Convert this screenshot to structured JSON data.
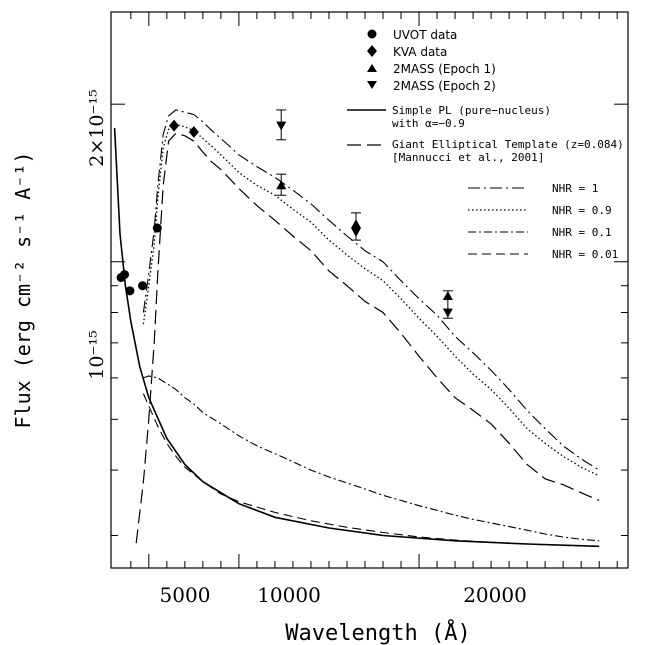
{
  "chart_data": {
    "type": "line",
    "title": "",
    "xlabel": "Wavelength (Å)",
    "ylabel": "Flux (erg cm⁻² s⁻¹ A⁻¹)",
    "x_ticks": [
      "5000",
      "10000",
      "20000"
    ],
    "y_ticks": [
      "10⁻¹⁵",
      "2×10⁻¹⁵"
    ],
    "xlim": [
      2900,
      31600
    ],
    "ylim": [
      2.6e-16,
      3e-15
    ],
    "y_scale": "log",
    "legend": [
      {
        "label": "UVOT data"
      },
      {
        "label": "KVA data"
      },
      {
        "label": "2MASS (Epoch 1)"
      },
      {
        "label": "2MASS (Epoch 2)"
      },
      {
        "label": "Simple PL (pure−nucleus)",
        "label2": "with α=−0.9"
      },
      {
        "label": "Giant Elliptical Template (z=0.084)",
        "label2": "[Mannucci et al., 2001]"
      },
      {
        "label": "NHR = 1"
      },
      {
        "label": "NHR = 0.9"
      },
      {
        "label": "NHR = 0.1"
      },
      {
        "label": "NHR = 0.01"
      }
    ],
    "points": {
      "uvot": [
        [
          3460,
          9.33e-16
        ],
        [
          3650,
          9.45e-16
        ],
        [
          3950,
          8.8e-16
        ],
        [
          4650,
          9e-16
        ],
        [
          5470,
          1.16e-15
        ]
      ],
      "kva": [
        [
          6400,
          1.82e-15
        ],
        [
          7500,
          1.77e-15
        ]
      ],
      "twomass_epoch1": [
        [
          12350,
          1.4e-15
        ],
        [
          16500,
          1.18e-15
        ],
        [
          21600,
          8.6e-16
        ]
      ],
      "twomass_epoch2": [
        [
          12350,
          1.82e-15
        ],
        [
          16500,
          1.14e-15
        ],
        [
          21600,
          8e-16
        ]
      ]
    },
    "error_bars": [
      {
        "x": 12350,
        "lo": 1.71e-15,
        "hi": 1.95e-15
      },
      {
        "x": 12350,
        "lo": 1.34e-15,
        "hi": 1.47e-15
      },
      {
        "x": 16500,
        "lo": 1.1e-15,
        "hi": 1.24e-15
      },
      {
        "x": 21600,
        "lo": 7.8e-16,
        "hi": 8.8e-16
      }
    ],
    "series": [
      {
        "key": "pl",
        "x": [
          3100,
          3400,
          3700,
          4000,
          4500,
          5000,
          6000,
          7000,
          8000,
          10000,
          12000,
          15000,
          18000,
          22000,
          26000,
          30000
        ],
        "y": [
          1.8e-15,
          1.13e-15,
          9e-16,
          7.7e-16,
          6.3e-16,
          5.5e-16,
          4.6e-16,
          4.1e-16,
          3.8e-16,
          3.45e-16,
          3.25e-16,
          3.1e-16,
          3e-16,
          2.93e-16,
          2.89e-16,
          2.86e-16
        ]
      },
      {
        "key": "template",
        "x": [
          4300,
          4700,
          5000,
          5300,
          5500,
          5800,
          6100,
          6500,
          7000,
          7500,
          8000,
          8500,
          9000,
          9500,
          10000,
          11000,
          12000,
          13000,
          14000,
          15000,
          16000,
          17000,
          18000,
          19000,
          20000,
          21000,
          22000,
          23000,
          24000,
          25000,
          26000,
          27000,
          28000,
          29000,
          30000
        ],
        "y": [
          2.9e-16,
          3.8e-16,
          5e-16,
          7e-16,
          9.5e-16,
          1.4e-15,
          1.7e-15,
          1.76e-15,
          1.74e-15,
          1.7e-15,
          1.62e-15,
          1.55e-15,
          1.5e-15,
          1.44e-15,
          1.38e-15,
          1.28e-15,
          1.2e-15,
          1.12e-15,
          1.05e-15,
          9.6e-16,
          9e-16,
          8.4e-16,
          8e-16,
          7.3e-16,
          6.6e-16,
          6e-16,
          5.5e-16,
          5.2e-16,
          4.9e-16,
          4.5e-16,
          4.1e-16,
          3.85e-16,
          3.75e-16,
          3.62e-16,
          3.5e-16
        ]
      },
      {
        "key": "nhr1",
        "x": [
          4700,
          5000,
          5300,
          5500,
          5800,
          6100,
          6500,
          7000,
          7500,
          8000,
          8500,
          9000,
          9500,
          10000,
          11000,
          12000,
          13000,
          14000,
          15000,
          16000,
          17000,
          18000,
          19000,
          20000,
          21000,
          22000,
          23000,
          24000,
          25000,
          26000,
          27000,
          28000,
          29000,
          30000
        ],
        "y": [
          8e-16,
          9.5e-16,
          1.15e-15,
          1.4e-15,
          1.75e-15,
          1.9e-15,
          1.95e-15,
          1.93e-15,
          1.91e-15,
          1.85e-15,
          1.78e-15,
          1.72e-15,
          1.66e-15,
          1.6e-15,
          1.52e-15,
          1.45e-15,
          1.37e-15,
          1.29e-15,
          1.2e-15,
          1.12e-15,
          1.05e-15,
          1e-15,
          9.2e-16,
          8.5e-16,
          7.9e-16,
          7.2e-16,
          6.7e-16,
          6.2e-16,
          5.7e-16,
          5.2e-16,
          4.8e-16,
          4.45e-16,
          4.2e-16,
          4e-16
        ]
      },
      {
        "key": "nhr09",
        "x": [
          4700,
          5000,
          5300,
          5500,
          5800,
          6100,
          6500,
          7000,
          7500,
          8000,
          8500,
          9000,
          9500,
          10000,
          11000,
          12000,
          13000,
          14000,
          15000,
          16000,
          17000,
          18000,
          19000,
          20000,
          21000,
          22000,
          23000,
          24000,
          25000,
          26000,
          27000,
          28000,
          29000,
          30000
        ],
        "y": [
          7.6e-16,
          9e-16,
          1.08e-15,
          1.32e-15,
          1.65e-15,
          1.79e-15,
          1.83e-15,
          1.81e-15,
          1.78e-15,
          1.72e-15,
          1.66e-15,
          1.6e-15,
          1.54e-15,
          1.48e-15,
          1.4e-15,
          1.34e-15,
          1.26e-15,
          1.19e-15,
          1.1e-15,
          1.03e-15,
          9.7e-16,
          9.2e-16,
          8.5e-16,
          7.8e-16,
          7.2e-16,
          6.6e-16,
          6.1e-16,
          5.7e-16,
          5.25e-16,
          4.8e-16,
          4.5e-16,
          4.25e-16,
          4.05e-16,
          3.9e-16
        ]
      },
      {
        "key": "nhr01",
        "x": [
          4700,
          5000,
          5500,
          6000,
          6500,
          7000,
          7500,
          8000,
          9000,
          10000,
          11000,
          12000,
          13000,
          14000,
          15000,
          16000,
          17000,
          18000,
          19000,
          20000,
          21000,
          22000,
          23000,
          24000,
          25000,
          26000,
          27000,
          28000,
          29000,
          30000
        ],
        "y": [
          6e-16,
          6.05e-16,
          6e-16,
          5.85e-16,
          5.7e-16,
          5.5e-16,
          5.35e-16,
          5.15e-16,
          4.9e-16,
          4.65e-16,
          4.45e-16,
          4.3e-16,
          4.15e-16,
          4e-16,
          3.88e-16,
          3.78e-16,
          3.68e-16,
          3.58e-16,
          3.5e-16,
          3.42e-16,
          3.35e-16,
          3.28e-16,
          3.22e-16,
          3.17e-16,
          3.12e-16,
          3.07e-16,
          3.02e-16,
          2.98e-16,
          2.95e-16,
          2.93e-16
        ]
      },
      {
        "key": "nhr001",
        "x": [
          4700,
          5000,
          5500,
          6000,
          6500,
          7000,
          8000,
          9000,
          10000,
          12000,
          14000,
          16000,
          18000,
          20000,
          22000,
          24000,
          26000,
          28000,
          30000
        ],
        "y": [
          5.6e-16,
          5.3e-16,
          4.85e-16,
          4.5e-16,
          4.25e-16,
          4.05e-16,
          3.8e-16,
          3.6e-16,
          3.48e-16,
          3.32e-16,
          3.2e-16,
          3.11e-16,
          3.04e-16,
          2.98e-16,
          2.94e-16,
          2.91e-16,
          2.89e-16,
          2.87e-16,
          2.86e-16
        ]
      }
    ],
    "colors": {
      "ink": "#000000",
      "background": "#ffffff"
    }
  }
}
